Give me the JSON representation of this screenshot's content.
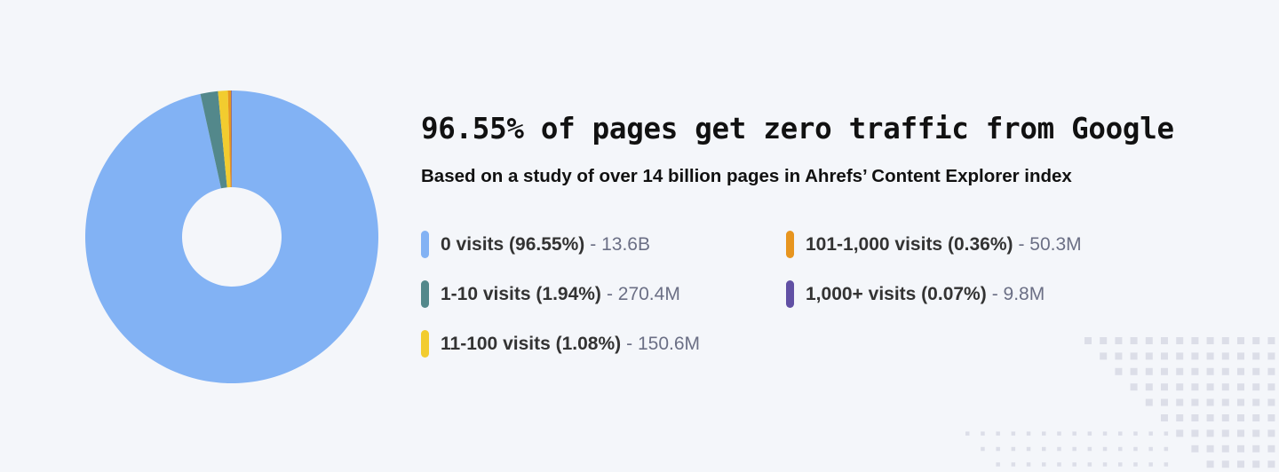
{
  "title": "96.55% of pages get zero traffic from Google",
  "subtitle": "Based on a study of over 14 billion pages in Ahrefs’ Content Explorer index",
  "chart_data": {
    "type": "pie",
    "donut": true,
    "start": "top",
    "direction": "clockwise",
    "legend_placement": "right",
    "slices": [
      {
        "label": "0 visits (96.55%)",
        "count": "- 13.6B",
        "value": 96.55,
        "color": "#82b2f4"
      },
      {
        "label": "1-10 visits (1.94%)",
        "count": "- 270.4M",
        "value": 1.94,
        "color": "#53888b"
      },
      {
        "label": "11-100 visits (1.08%)",
        "count": "- 150.6M",
        "value": 1.08,
        "color": "#f2cc2f"
      },
      {
        "label": "101-1,000 visits (0.36%)",
        "count": "- 50.3M",
        "value": 0.36,
        "color": "#e7951f"
      },
      {
        "label": "1,000+ visits (0.07%)",
        "count": "- 9.8M",
        "value": 0.07,
        "color": "#6150a4"
      }
    ]
  }
}
